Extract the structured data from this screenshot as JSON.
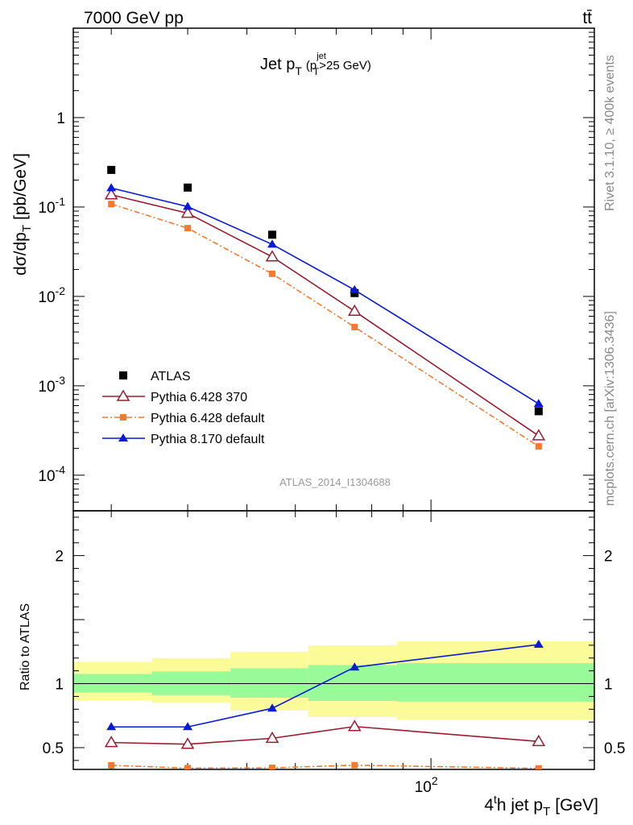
{
  "header": {
    "left": "7000 GeV pp",
    "right": "tt̄"
  },
  "side_labels": {
    "rivet": "Rivet 3.1.10, ≥ 400k events",
    "mcplots": "mcplots.cern.ch [arXiv:1306.3436]"
  },
  "analysis_id": "ATLAS_2014_I1304688",
  "plot_title": {
    "main": "Jet p",
    "sub": "T",
    "cut_open": "(p",
    "cut_sup": "jet",
    "cut_sub": "T",
    "cut_close": ">25 GeV)"
  },
  "axis_labels": {
    "upper_y": "dσ/dp",
    "upper_y_sub": "T",
    "upper_y_unit": "[pb/GeV]",
    "lower_y": "Ratio to ATLAS",
    "x_pre": "4",
    "x_sup": "t",
    "x_mid": "h jet p",
    "x_sub": "T",
    "x_unit": "[GeV]"
  },
  "colors": {
    "atlas": "#000000",
    "pythia6_370": "#9b1b30",
    "pythia6_default": "#f47a30",
    "pythia8": "#0b19d8",
    "band_inner": "#99fa99",
    "band_outer": "#fbfb99"
  },
  "chart_data": [
    {
      "type": "scatter",
      "panel": "main",
      "x_scale": "log",
      "y_scale": "log",
      "xlim": [
        26,
        185
      ],
      "ylim": [
        4e-05,
        10
      ],
      "y_tick_labels": [
        "1",
        "10^-1",
        "10^-2",
        "10^-3",
        "10^-4"
      ],
      "x_tick_labels": [
        "10^2"
      ],
      "legend_position": "bottom-left",
      "x": [
        30,
        40,
        55,
        75,
        150
      ],
      "series": [
        {
          "name": "ATLAS",
          "marker": "filled-square",
          "line": "none",
          "values": [
            0.26,
            0.165,
            0.049,
            0.0109,
            0.00052
          ]
        },
        {
          "name": "Pythia 6.428 370",
          "marker": "open-triangle",
          "line": "solid",
          "values": [
            0.137,
            0.0852,
            0.0277,
            0.00683,
            0.000276
          ]
        },
        {
          "name": "Pythia 6.428 default",
          "marker": "filled-square-small",
          "line": "dash-dot",
          "values": [
            0.108,
            0.058,
            0.0179,
            0.00454,
            0.00021
          ]
        },
        {
          "name": "Pythia 8.170 default",
          "marker": "filled-triangle",
          "line": "solid",
          "values": [
            0.163,
            0.101,
            0.0382,
            0.0118,
            0.00063
          ]
        }
      ]
    },
    {
      "type": "line",
      "panel": "ratio",
      "x_scale": "log",
      "ylim": [
        0.33,
        2.35
      ],
      "y_tick_labels": [
        "0.5",
        "1",
        "2"
      ],
      "x": [
        30,
        40,
        55,
        75,
        150
      ],
      "series": [
        {
          "name": "Pythia 6.428 370",
          "values": [
            0.54,
            0.527,
            0.573,
            0.665,
            0.548
          ]
        },
        {
          "name": "Pythia 6.428 default",
          "values": [
            0.362,
            0.34,
            0.342,
            0.363,
            0.338
          ]
        },
        {
          "name": "Pythia 8.170 default",
          "values": [
            0.662,
            0.662,
            0.807,
            1.128,
            1.305
          ]
        }
      ],
      "uncertainty_bands": {
        "bin_edges": [
          26,
          35,
          47,
          63,
          88,
          185
        ],
        "inner": [
          [
            0.93,
            1.075
          ],
          [
            0.91,
            1.095
          ],
          [
            0.89,
            1.12
          ],
          [
            0.865,
            1.145
          ],
          [
            0.86,
            1.16
          ]
        ],
        "outer": [
          [
            0.87,
            1.17
          ],
          [
            0.85,
            1.2
          ],
          [
            0.79,
            1.25
          ],
          [
            0.74,
            1.3
          ],
          [
            0.72,
            1.33
          ]
        ]
      }
    }
  ]
}
